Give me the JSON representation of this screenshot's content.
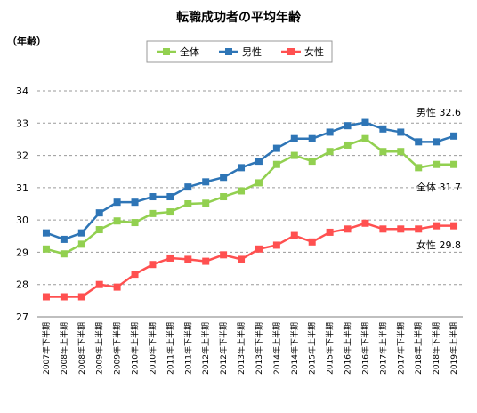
{
  "chart_data": {
    "type": "line",
    "title": "転職成功者の平均年齢",
    "unit_label": "（年齢）",
    "ylim": [
      27,
      34
    ],
    "yticks": [
      27,
      28,
      29,
      30,
      31,
      32,
      33,
      34
    ],
    "grid": true,
    "legend_position": "top",
    "categories": [
      "2007年下半期",
      "2008年上半期",
      "2008年下半期",
      "2009年上半期",
      "2009年下半期",
      "2010年上半期",
      "2010年下半期",
      "2011年上半期",
      "2011年下半期",
      "2012年上半期",
      "2012年下半期",
      "2013年上半期",
      "2013年下半期",
      "2014年上半期",
      "2014年下半期",
      "2015年上半期",
      "2015年下半期",
      "2016年上半期",
      "2016年下半期",
      "2017年上半期",
      "2017年下半期",
      "2018年上半期",
      "2018年下半期",
      "2019年上半期"
    ],
    "series": [
      {
        "name": "全体",
        "color": "#92d050",
        "marker": "square",
        "end_label": "全体 31.7",
        "values": [
          29.1,
          28.95,
          29.25,
          29.7,
          29.97,
          29.92,
          30.2,
          30.25,
          30.5,
          30.52,
          30.72,
          30.9,
          31.15,
          31.72,
          32.0,
          31.82,
          32.12,
          32.32,
          32.52,
          32.12,
          32.12,
          31.62,
          31.72,
          31.72
        ]
      },
      {
        "name": "男性",
        "color": "#2e75b6",
        "marker": "square",
        "end_label": "男性 32.6",
        "values": [
          29.6,
          29.4,
          29.6,
          30.22,
          30.55,
          30.55,
          30.72,
          30.72,
          31.02,
          31.18,
          31.32,
          31.62,
          31.82,
          32.22,
          32.52,
          32.52,
          32.72,
          32.92,
          33.02,
          32.82,
          32.72,
          32.42,
          32.42,
          32.6
        ]
      },
      {
        "name": "女性",
        "color": "#ff5050",
        "marker": "square",
        "end_label": "女性 29.8",
        "values": [
          27.62,
          27.62,
          27.62,
          28.0,
          27.92,
          28.32,
          28.62,
          28.82,
          28.78,
          28.72,
          28.92,
          28.78,
          29.1,
          29.22,
          29.52,
          29.32,
          29.62,
          29.72,
          29.9,
          29.72,
          29.72,
          29.72,
          29.82,
          29.82
        ]
      }
    ]
  }
}
